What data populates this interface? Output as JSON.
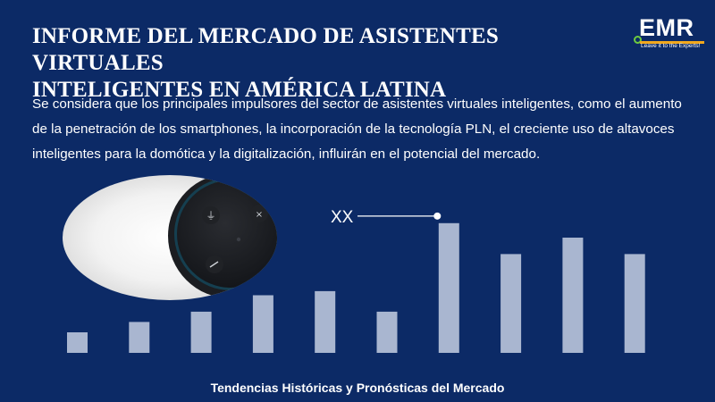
{
  "title_lines": [
    "INFORME DEL MERCADO DE ASISTENTES VIRTUALES",
    "INTELIGENTES EN AMÉRICA LATINA"
  ],
  "logo": {
    "text": "EMR",
    "tagline": "Leave it to the Experts!",
    "colors": {
      "bar": "#f2a81d",
      "dot": "#6ecb3f"
    }
  },
  "description_lines": [
    "Se considera que los principales impulsores del sector de asistentes virtuales inteligentes, como el aumento",
    "de la penetración de los smartphones, la incorporación de la tecnología PLN, el creciente uso de altavoces",
    "inteligentes para la domótica y la digitalización, influirán en el potencial del mercado."
  ],
  "image": {
    "subject": "smart-speaker",
    "icons": [
      "microphone-icon",
      "action-dot-icon",
      "close-icon",
      "minus-icon"
    ]
  },
  "footer": "Tendencias Históricas y Pronósticas del Mercado",
  "colors": {
    "background": "#0c2a66",
    "bar": "#a9b6d0",
    "text": "#ffffff"
  },
  "chart_data": {
    "type": "bar",
    "values": [
      1,
      1.5,
      2,
      2.8,
      3,
      2,
      6.3,
      4.8,
      5.6,
      4.8
    ],
    "ylim": [
      0,
      7
    ],
    "annotation": {
      "label": "XX",
      "bar_index": 6
    },
    "grid": false,
    "axes_visible": false
  }
}
